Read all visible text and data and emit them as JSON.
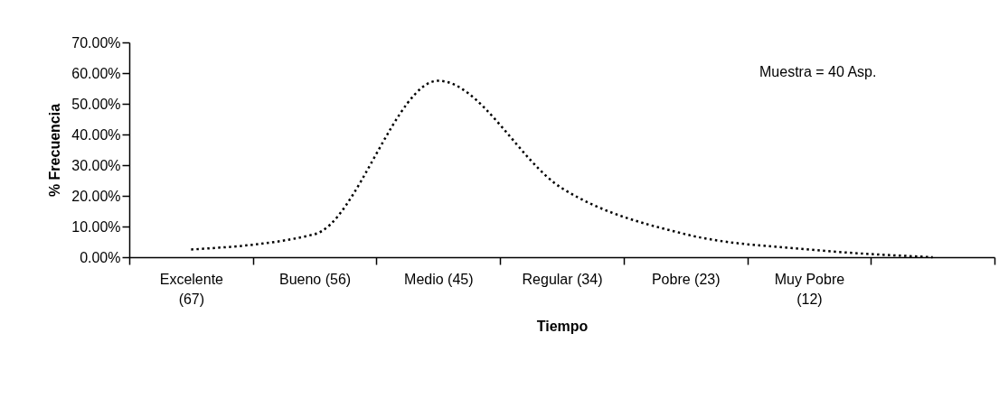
{
  "chart_data": {
    "type": "line",
    "categories": [
      "Excelente\n(67)",
      "Bueno (56)",
      "Medio (45)",
      "Regular (34)",
      "Pobre (23)",
      "Muy Pobre\n(12)",
      null
    ],
    "series": [
      {
        "color": "#000000",
        "values": [
          2.5,
          7.5,
          57.5,
          22.5,
          7.5,
          2.5,
          0
        ]
      }
    ],
    "xlabel": "Tiempo",
    "ylabel": "% Frecuencia",
    "ylim": [
      0,
      70
    ],
    "yticks": [
      {
        "value": 0,
        "label": "0.00%"
      },
      {
        "value": 10,
        "label": "10.00%"
      },
      {
        "value": 20,
        "label": "20.00%"
      },
      {
        "value": 30,
        "label": "30.00%"
      },
      {
        "value": 40,
        "label": "40.00%"
      },
      {
        "value": 50,
        "label": "50.00%"
      },
      {
        "value": 60,
        "label": "60.00%"
      },
      {
        "value": 70,
        "label": "70.00%"
      }
    ],
    "annotations": [
      "Muestra = 40  Asp."
    ],
    "grid": false,
    "legend": false,
    "marker": "none",
    "line_style": "dotted"
  }
}
